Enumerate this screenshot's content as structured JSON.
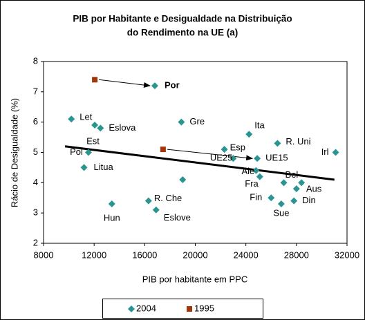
{
  "chart_data": {
    "type": "scatter",
    "title": [
      "PIB por Habitante e Desigualdade na Distribuição",
      "do Rendimento na UE (a)"
    ],
    "x_label": "PIB por habitante em PPC",
    "y_label": "Rácio de Desigualdade (%)",
    "xlim": [
      8000,
      32000
    ],
    "xticks": [
      8000,
      12000,
      16000,
      20000,
      24000,
      28000,
      32000
    ],
    "ylim": [
      2,
      8
    ],
    "yticks": [
      2,
      3,
      4,
      5,
      6,
      7,
      8
    ],
    "series": [
      {
        "name": "2004",
        "color": "#2a9590",
        "marker": "diamond",
        "x": [
          16800,
          10200,
          12050,
          12500,
          18900,
          24250,
          26500,
          31100,
          22300,
          23000,
          24900,
          11550,
          11200,
          24800,
          25100,
          27000,
          28000,
          28400,
          19000,
          26000,
          26800,
          27800,
          16300,
          16900,
          13400
        ],
        "values": [
          7.2,
          6.1,
          5.9,
          5.8,
          6.0,
          5.6,
          5.3,
          5.0,
          5.1,
          4.8,
          4.8,
          5.0,
          4.5,
          4.4,
          4.2,
          4.0,
          3.8,
          4.0,
          4.1,
          3.5,
          3.3,
          3.4,
          3.4,
          3.1,
          3.3
        ],
        "labels": [
          "Por",
          "Let",
          "Est",
          "Eslova",
          "Gre",
          "Ita",
          "R. Uni",
          "Irl",
          "Esp",
          "UE25",
          "UE15",
          "Pol",
          "Litua",
          "Ale",
          "Fra",
          "Bel",
          "Aus",
          null,
          null,
          "Fin",
          "Sue",
          "Din",
          "R. Che",
          "Eslove",
          "Hun"
        ]
      },
      {
        "name": "1995",
        "color": "#a0360c",
        "marker": "square",
        "x": [
          12050,
          17450
        ],
        "values": [
          7.4,
          5.1
        ]
      }
    ],
    "trendline": {
      "x": [
        9700,
        31000
      ],
      "values": [
        5.2,
        4.1
      ]
    }
  }
}
